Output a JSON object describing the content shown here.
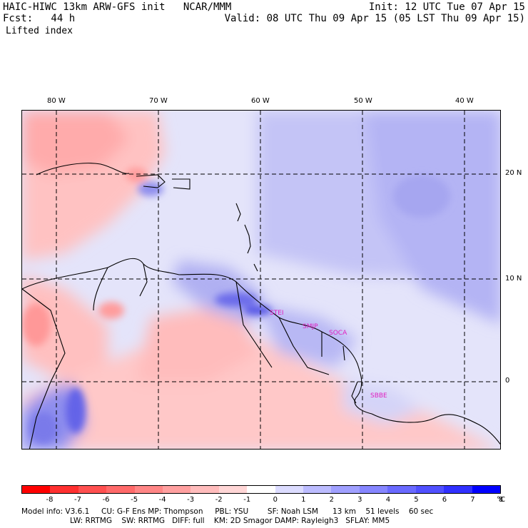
{
  "header": {
    "left_line1": "HAIC-HIWC 13km ARW-GFS init   NCAR/MMM",
    "left_line2": "Fcst:   44 h",
    "right_line1": "Init: 12 UTC Tue 07 Apr 15",
    "right_line2": "Valid: 08 UTC Thu 09 Apr 15 (05 LST Thu 09 Apr 15)",
    "field": "Lifted index"
  },
  "map": {
    "lon_labels": [
      "80 W",
      "70 W",
      "60 W",
      "50 W",
      "40 W"
    ],
    "lat_labels": [
      "20 N",
      "10 N",
      "0"
    ],
    "sites": [
      "STEI",
      "SMJP",
      "SOCA",
      "SBBE"
    ]
  },
  "colorbar": {
    "labels": [
      "-8",
      "-7",
      "-6",
      "-5",
      "-4",
      "-3",
      "-2",
      "-1",
      "0",
      "1",
      "2",
      "3",
      "4",
      "5",
      "6",
      "7",
      "8"
    ],
    "unit": "°C",
    "colors": [
      "#ff0000",
      "#ff3030",
      "#ff5050",
      "#ff6a6a",
      "#ff8686",
      "#ffa0a0",
      "#ffbcbc",
      "#ffd6d6",
      "#ffffff",
      "#dcdcff",
      "#bcbcff",
      "#a0a0ff",
      "#8686ff",
      "#6a6aff",
      "#5050ff",
      "#3030ff",
      "#0000ff"
    ]
  },
  "footer": {
    "line1": "Model info: V3.6.1     CU: G-F Ens MP: Thompson     PBL: YSU        SF: Noah LSM      13 km    51 levels    60 sec",
    "line2": "LW: RRTMG    SW: RRTMG   DIFF: full    KM: 2D Smagor DAMP: Rayleigh3   SFLAY: MM5"
  }
}
